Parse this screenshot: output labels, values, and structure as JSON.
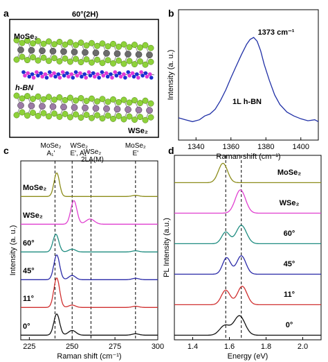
{
  "panels": {
    "a": {
      "letter": "a",
      "title": "60°(2H)",
      "labels": {
        "top": "MoSe₂",
        "middle": "h-BN",
        "bottom": "WSe₂"
      }
    }
  },
  "colors": {
    "mo_atom": "#6b6b6b",
    "se_atom": "#8ed23a",
    "w_atom": "#9c7ba6",
    "b_atom": "#1a2fd0",
    "n_atom": "#e03ad8",
    "blue_line": "#1f2fa6"
  },
  "chart_data": [
    {
      "panel": "b",
      "type": "line",
      "xlabel": "Raman shift (cm⁻¹)",
      "ylabel": "Intensity (a. u.)",
      "xlim": [
        1330,
        1410
      ],
      "xticks": [
        1340,
        1360,
        1380,
        1400
      ],
      "annotations": {
        "peak": "1373 cm⁻¹",
        "sample": "1L h-BN"
      },
      "series": [
        {
          "color": "#1f2fa6",
          "x": [
            1330,
            1334,
            1338,
            1342,
            1345,
            1348,
            1351,
            1354,
            1357,
            1360,
            1363,
            1366,
            1369,
            1371,
            1373,
            1375,
            1377,
            1379,
            1382,
            1385,
            1388,
            1392,
            1396,
            1400,
            1404,
            1408,
            1410
          ],
          "y": [
            0.16,
            0.14,
            0.12,
            0.14,
            0.18,
            0.2,
            0.25,
            0.34,
            0.45,
            0.58,
            0.7,
            0.82,
            0.93,
            0.98,
            1.0,
            0.96,
            0.86,
            0.72,
            0.55,
            0.4,
            0.3,
            0.22,
            0.18,
            0.15,
            0.13,
            0.14,
            0.12
          ]
        }
      ]
    },
    {
      "panel": "c",
      "type": "line",
      "xlabel": "Raman shift (cm⁻¹)",
      "ylabel": "Intensity (a. u.)",
      "xlim": [
        220,
        300
      ],
      "xticks": [
        225,
        250,
        275,
        300
      ],
      "reference_lines": [
        {
          "x": 240,
          "label": [
            "MoSe₂",
            "A₁'"
          ]
        },
        {
          "x": 250,
          "label": [
            "WSe₂",
            "E', A₁'"
          ]
        },
        {
          "x": 261,
          "label": [
            "WSe₂",
            "2LA(M)"
          ]
        },
        {
          "x": 287,
          "label": [
            "MoSe₂",
            "E'"
          ]
        }
      ],
      "series": [
        {
          "name": "MoSe₂",
          "color": "#8c8c1a",
          "offset": 5,
          "peaks": [
            [
              241,
              1.0,
              1.6
            ],
            [
              287,
              0.05,
              2
            ]
          ],
          "baseline": 0.02
        },
        {
          "name": "WSe₂",
          "color": "#e040d0",
          "offset": 4,
          "peaks": [
            [
              251,
              1.0,
              1.8
            ],
            [
              260.5,
              0.22,
              2.5
            ]
          ],
          "baseline": 0.02
        },
        {
          "name": "60°",
          "color": "#1e8c80",
          "offset": 3,
          "peaks": [
            [
              240.5,
              0.75,
              1.7
            ],
            [
              250,
              0.12,
              2
            ],
            [
              287,
              0.05,
              2
            ]
          ],
          "baseline": 0.02
        },
        {
          "name": "45°",
          "color": "#2a2aa8",
          "offset": 2,
          "peaks": [
            [
              241,
              1.05,
              1.7
            ],
            [
              250,
              0.18,
              2
            ],
            [
              287,
              0.06,
              2
            ]
          ],
          "baseline": 0.02
        },
        {
          "name": "11°",
          "color": "#d03030",
          "offset": 1,
          "peaks": [
            [
              241,
              1.25,
              1.7
            ],
            [
              250,
              0.1,
              2
            ],
            [
              287,
              0.05,
              2
            ]
          ],
          "baseline": 0.02
        },
        {
          "name": "0°",
          "color": "#111111",
          "offset": 0,
          "peaks": [
            [
              241,
              0.9,
              1.7
            ],
            [
              250,
              0.2,
              2.2
            ],
            [
              287,
              0.06,
              2
            ]
          ],
          "baseline": 0.02
        }
      ]
    },
    {
      "panel": "d",
      "type": "line",
      "xlabel": "Energy (eV)",
      "ylabel": "PL Intensity (a.u.)",
      "xlim": [
        1.3,
        2.1
      ],
      "xticks": [
        1.4,
        1.6,
        1.8,
        2.0
      ],
      "xtick_labels": [
        "1.4",
        "1.6",
        "1.8",
        "2.0"
      ],
      "reference_lines": [
        {
          "x": 1.58
        },
        {
          "x": 1.665
        }
      ],
      "series": [
        {
          "name": "MoSe₂",
          "color": "#8c8c1a",
          "offset": 5,
          "peaks": [
            [
              1.565,
              1.0,
              0.025
            ]
          ],
          "baseline": 0.02
        },
        {
          "name": "WSe₂",
          "color": "#e040d0",
          "offset": 4,
          "peaks": [
            [
              1.66,
              1.2,
              0.028
            ]
          ],
          "baseline": 0.02
        },
        {
          "name": "60°",
          "color": "#1e8c80",
          "offset": 3,
          "peaks": [
            [
              1.58,
              0.6,
              0.022
            ],
            [
              1.665,
              0.95,
              0.028
            ]
          ],
          "baseline": 0.02
        },
        {
          "name": "45°",
          "color": "#2a2aa8",
          "offset": 2,
          "peaks": [
            [
              1.585,
              0.85,
              0.022
            ],
            [
              1.665,
              0.95,
              0.025
            ]
          ],
          "baseline": 0.02
        },
        {
          "name": "11°",
          "color": "#d03030",
          "offset": 1,
          "peaks": [
            [
              1.58,
              0.75,
              0.024
            ],
            [
              1.67,
              0.95,
              0.026
            ]
          ],
          "baseline": 0.02
        },
        {
          "name": "0°",
          "color": "#111111",
          "offset": 0,
          "peaks": [
            [
              1.575,
              0.5,
              0.028
            ],
            [
              1.655,
              1.0,
              0.03
            ]
          ],
          "baseline": 0.02
        }
      ]
    }
  ]
}
